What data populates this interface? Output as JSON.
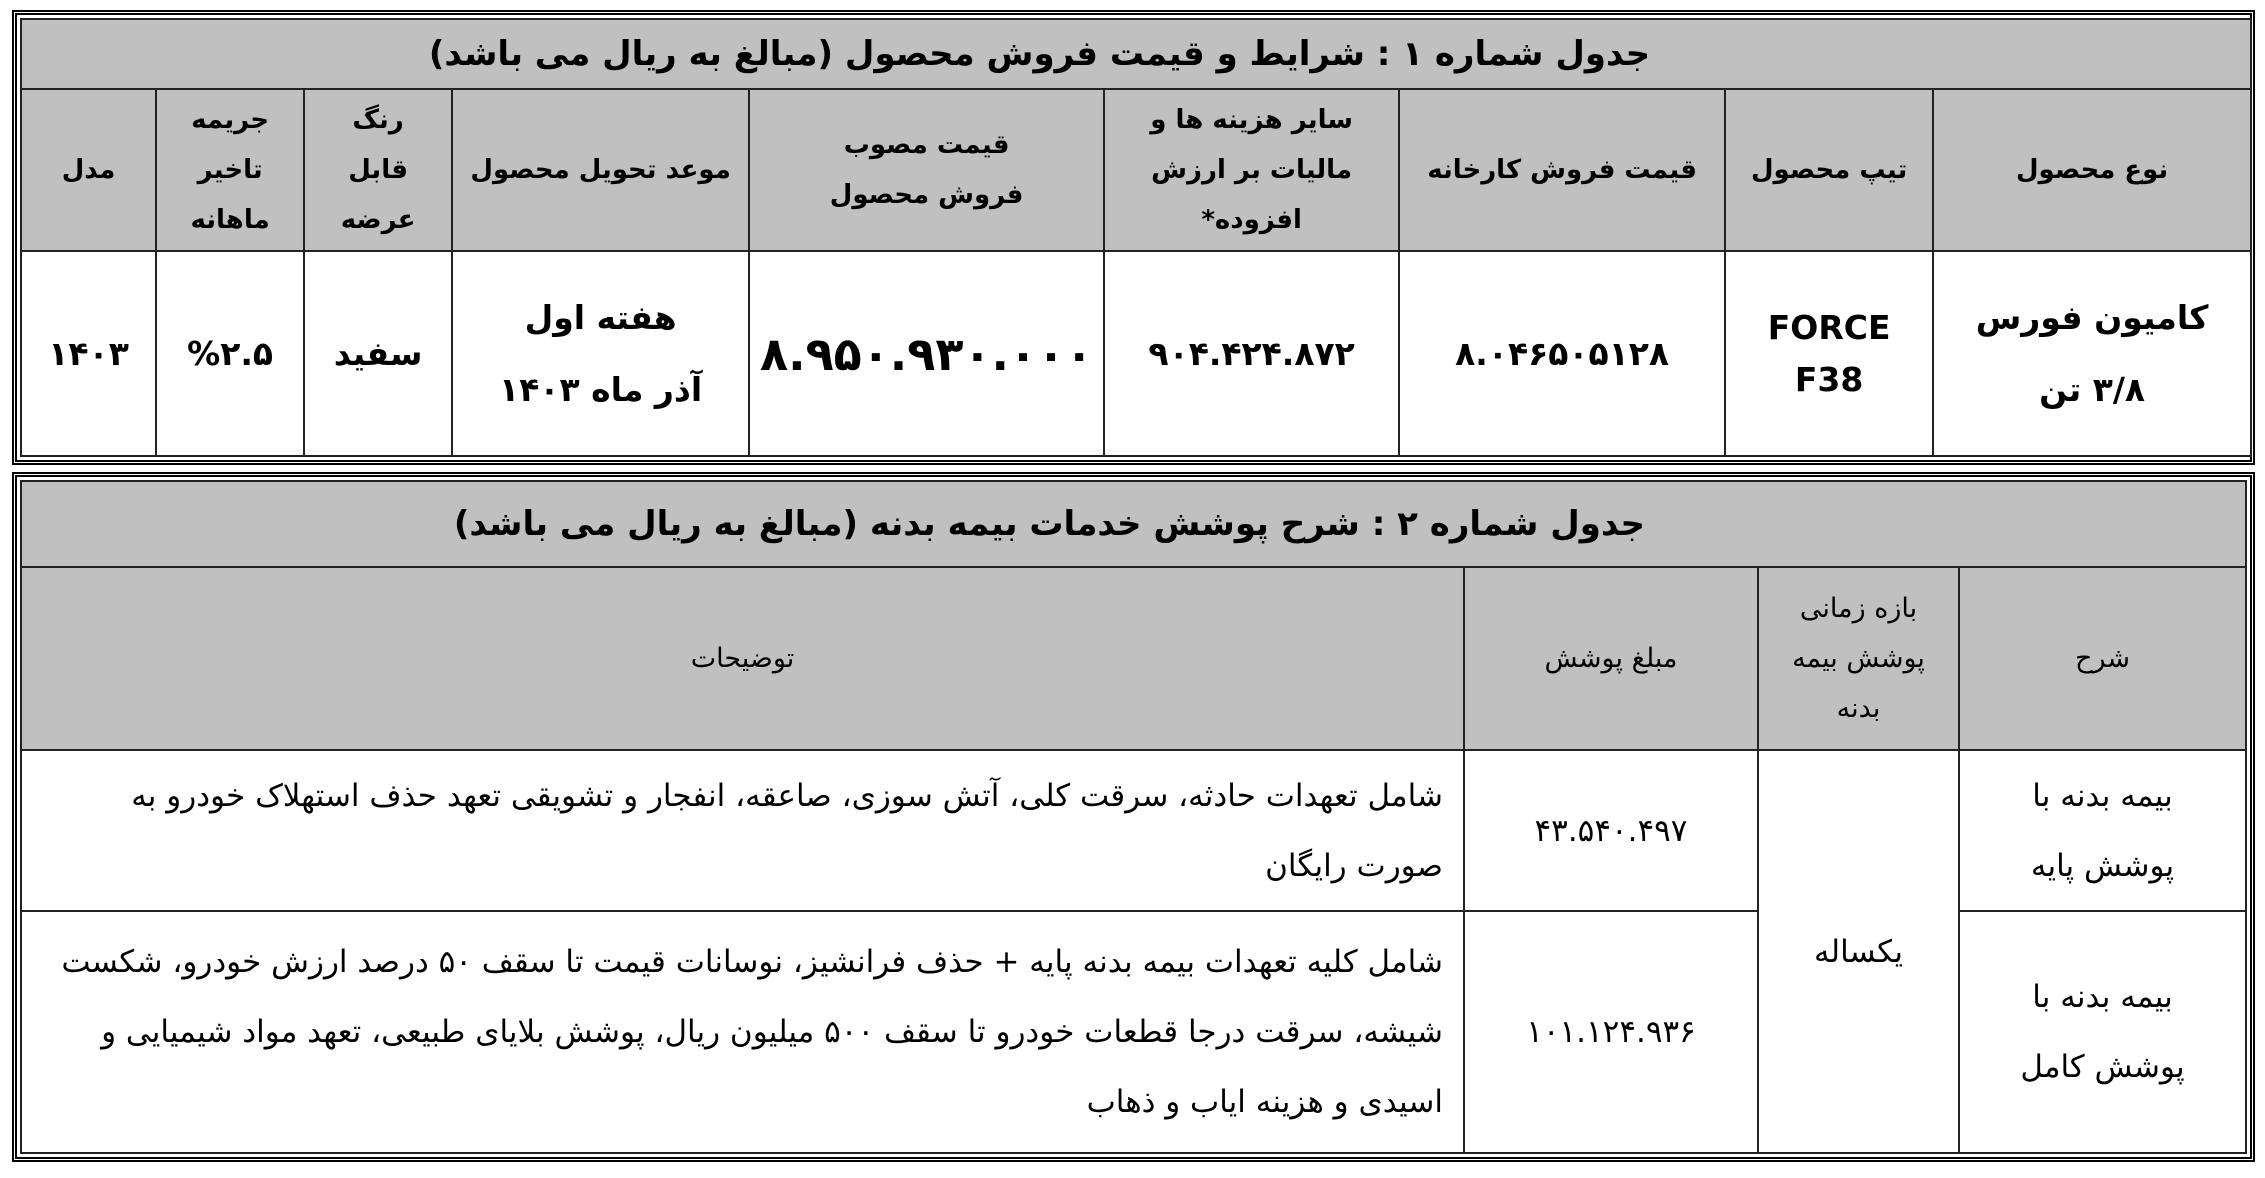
{
  "table1": {
    "title": "جدول شماره ۱ : شرایط و قیمت فروش محصول (مبالغ به ریال می باشد)",
    "headers": [
      "نوع محصول",
      "تیپ محصول",
      "قیمت فروش کارخانه",
      "سایر هزینه ها و مالیات بر ارزش افزوده*",
      "قیمت مصوب فروش محصول",
      "موعد تحویل محصول",
      "رنگ قابل عرضه",
      "جریمه تاخیر ماهانه",
      "مدل"
    ],
    "row": {
      "product_type_line1": "کامیون فورس",
      "product_type_line2": "۳/۸ تن",
      "product_trim_line1": "FORCE",
      "product_trim_line2": "F38",
      "factory_price": "۸.۰۴۶۵۰۵۱۲۸",
      "other_costs_vat": "۹۰۴.۴۲۴.۸۷۲",
      "approved_price": "۸.۹۵۰.۹۳۰.۰۰۰",
      "delivery_line1": "هفته اول",
      "delivery_line2": "آذر ماه ۱۴۰۳",
      "color": "سفید",
      "monthly_penalty": "%۲.۵",
      "model": "۱۴۰۳"
    }
  },
  "table2": {
    "title": "جدول شماره ۲ : شرح پوشش خدمات بیمه بدنه (مبالغ به ریال می باشد)",
    "headers": [
      "شرح",
      "بازه زمانی پوشش بیمه بدنه",
      "مبلغ پوشش",
      "توضیحات"
    ],
    "period": "یکساله",
    "rows": [
      {
        "desc": "بیمه بدنه با پوشش پایه",
        "amount": "۴۳.۵۴۰.۴۹۷",
        "details": "شامل تعهدات حادثه، سرقت کلی، آتش سوزی، صاعقه، انفجار و تشویقی تعهد حذف استهلاک خودرو به صورت رایگان"
      },
      {
        "desc": "بیمه بدنه با پوشش کامل",
        "amount": "۱۰۱.۱۲۴.۹۳۶",
        "details": "شامل کلیه تعهدات بیمه بدنه پایه + حذف فرانشیز، نوسانات قیمت تا سقف ۵۰ درصد ارزش خودرو، شکست شیشه، سرقت درجا قطعات خودرو تا سقف ۵۰۰ میلیون ریال، پوشش بلایای طبیعی، تعهد مواد شیمیایی و اسیدی و هزینه ایاب و ذهاب"
      }
    ]
  }
}
